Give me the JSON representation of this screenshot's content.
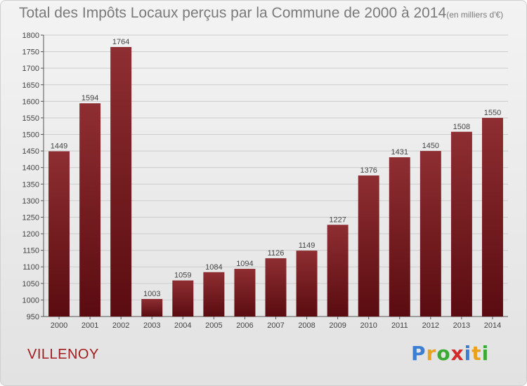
{
  "chart_title": "Total des Impôts Locaux perçus par la Commune de 2000 à 2014",
  "chart_unit": "(en milliers d'€)",
  "commune_label": "VILLENOY",
  "brand": {
    "name": "Proxiti",
    "letters": [
      "P",
      "r",
      "o",
      "x",
      "i",
      "t",
      "i"
    ],
    "colors": [
      "#3a7fd4",
      "#e8a21f",
      "#3aaa35",
      "#d32a2a",
      "#3a7fd4",
      "#e8a21f",
      "#3aaa35"
    ]
  },
  "colors": {
    "bar_top": "#8e2e32",
    "bar_bottom": "#5a0c10",
    "axis": "#555555",
    "grid": "#cccccc",
    "text": "#444444"
  },
  "chart_data": {
    "type": "bar",
    "title": "Total des Impôts Locaux perçus par la Commune de 2000 à 2014",
    "ylabel": "en milliers d'€",
    "xlabel": "",
    "categories": [
      "2000",
      "2001",
      "2002",
      "2003",
      "2004",
      "2005",
      "2006",
      "2007",
      "2008",
      "2009",
      "2010",
      "2011",
      "2012",
      "2013",
      "2014"
    ],
    "values": [
      1449,
      1594,
      1764,
      1003,
      1059,
      1084,
      1094,
      1126,
      1149,
      1227,
      1376,
      1431,
      1450,
      1508,
      1550
    ],
    "ylim": [
      950,
      1800
    ],
    "yticks": [
      950,
      1000,
      1050,
      1100,
      1150,
      1200,
      1250,
      1300,
      1350,
      1400,
      1450,
      1500,
      1550,
      1600,
      1650,
      1700,
      1750,
      1800
    ],
    "grid": true
  }
}
